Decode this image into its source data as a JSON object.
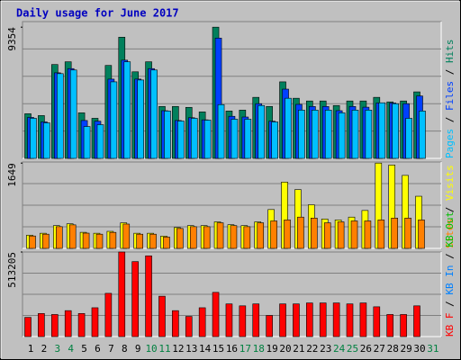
{
  "chart_data": {
    "type": "bar",
    "title": "Daily usage for June 2017",
    "categories": [
      "1",
      "2",
      "3",
      "4",
      "5",
      "6",
      "7",
      "8",
      "9",
      "10",
      "11",
      "12",
      "13",
      "14",
      "15",
      "16",
      "17",
      "18",
      "19",
      "20",
      "21",
      "22",
      "23",
      "24",
      "25",
      "26",
      "27",
      "28",
      "29",
      "30",
      "31"
    ],
    "category_colors": [
      "#000000",
      "#000000",
      "#008040",
      "#008040",
      "#000000",
      "#000000",
      "#000000",
      "#000000",
      "#000000",
      "#008040",
      "#008040",
      "#000000",
      "#000000",
      "#000000",
      "#000000",
      "#000000",
      "#008040",
      "#008040",
      "#000000",
      "#000000",
      "#000000",
      "#000000",
      "#000000",
      "#008040",
      "#008040",
      "#000000",
      "#000000",
      "#000000",
      "#000000",
      "#000000",
      "#008040"
    ],
    "legend_separator": "/",
    "panels": [
      {
        "ylim": [
          0,
          9750
        ],
        "yticks": [
          9354
        ],
        "series": [
          {
            "name": "Hits",
            "color": "#00805c",
            "values": [
              3183,
              3053,
              6691,
              6886,
              3248,
              2858,
              6626,
              8640,
              6171,
              6886,
              3703,
              3703,
              3638,
              3313,
              9354,
              3378,
              3443,
              4352,
              3703,
              5457,
              4287,
              4093,
              4093,
              3768,
              4093,
              4093,
              4352,
              4028,
              4093,
              4742,
              null
            ]
          },
          {
            "name": "Files",
            "color": "#0040ff",
            "values": [
              2923,
              2600,
              6100,
              6400,
              2700,
              2650,
              5650,
              7000,
              5652,
              6400,
              3400,
              2700,
              2900,
              2750,
              8575,
              3000,
              2950,
              3900,
              2650,
              4937,
              3850,
              3700,
              3700,
              3400,
              3700,
              3650,
              3950,
              3950,
              3900,
              4450,
              null
            ]
          },
          {
            "name": "Pages",
            "color": "#00c0ff",
            "values": [
              2858,
              2533,
              6041,
              6301,
              2274,
              2404,
              5457,
              6886,
              5587,
              6301,
              3378,
              2663,
              2858,
              2728,
              3833,
              2793,
              2793,
              3768,
              2598,
              4287,
              3443,
              3443,
              3443,
              3248,
              3443,
              3443,
              3963,
              3898,
              2858,
              3378,
              null
            ]
          }
        ]
      },
      {
        "ylim": [
          0,
          1670
        ],
        "yticks": [
          1649
        ],
        "series": [
          {
            "name": "Visits",
            "color": "#ffff00",
            "values": [
              256,
              293,
              440,
              476,
              311,
              293,
              330,
              495,
              293,
              293,
              238,
              403,
              440,
              440,
              513,
              458,
              440,
              513,
              751,
              1282,
              1136,
              843,
              568,
              550,
              605,
              733,
              1649,
              1612,
              1411,
              1008,
              null
            ]
          },
          {
            "name": "Sites",
            "color": "#ff8000",
            "values": [
              240,
              275,
              420,
              455,
              295,
              275,
              310,
              470,
              275,
              275,
              220,
              385,
              420,
              420,
              495,
              440,
              420,
              495,
              531,
              550,
              605,
              586,
              495,
              513,
              531,
              531,
              550,
              586,
              586,
              550,
              null
            ]
          }
        ]
      },
      {
        "ylim": [
          0,
          513205
        ],
        "yticks": [
          513205
        ],
        "series": [
          {
            "name": "KB F",
            "color": "#ff0000",
            "values": [
              116640,
              139968,
              134000,
              157464,
              139968,
              174960,
              262440,
              513205,
              454896,
              489888,
              244944,
              157464,
              122472,
              174960,
              268272,
              198288,
              186624,
              198288,
              128304,
              198288,
              198288,
              204120,
              204120,
              204120,
              198288,
              204120,
              180792,
              134136,
              134136,
              186624,
              null
            ]
          },
          {
            "name": "KB In",
            "color": "#0080ff",
            "values": [
              null,
              null,
              null,
              null,
              null,
              null,
              null,
              null,
              null,
              null,
              null,
              null,
              null,
              null,
              null,
              null,
              null,
              null,
              null,
              null,
              null,
              null,
              null,
              null,
              null,
              null,
              null,
              null,
              null,
              null,
              null
            ]
          },
          {
            "name": "KB Out",
            "color": "#00c000",
            "values": [
              null,
              null,
              null,
              null,
              null,
              null,
              null,
              null,
              null,
              null,
              null,
              null,
              null,
              null,
              null,
              null,
              null,
              null,
              null,
              null,
              null,
              null,
              null,
              null,
              null,
              null,
              null,
              null,
              null,
              null,
              null
            ]
          }
        ]
      }
    ]
  }
}
